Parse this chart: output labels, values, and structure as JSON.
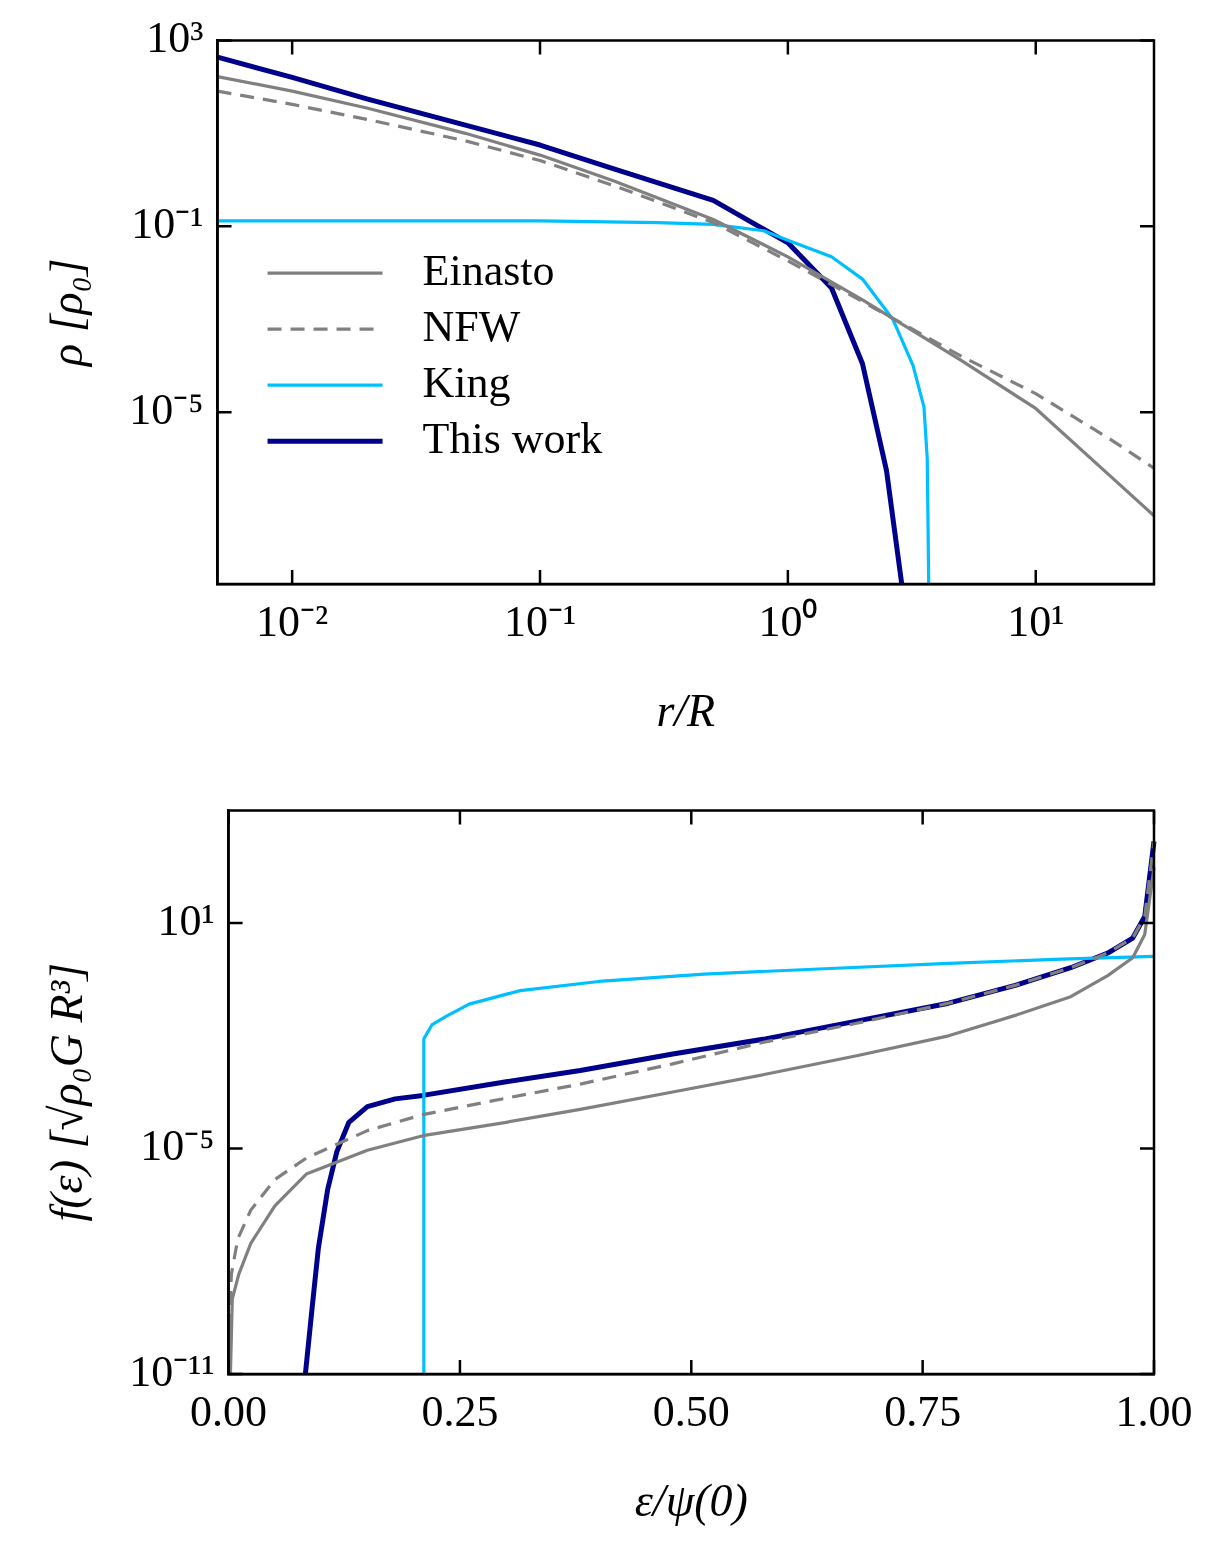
{
  "chart_data": [
    {
      "type": "line",
      "xlabel": "r/R",
      "ylabel": "ρ [ρ₀]",
      "log": "xy",
      "grid": false,
      "legend": "center left",
      "xlim": [
        0.005,
        30
      ],
      "ylim": [
        2e-09,
        1000
      ],
      "xticks": [
        {
          "value": 0.01,
          "label": "10⁻²"
        },
        {
          "value": 0.1,
          "label": "10⁻¹"
        },
        {
          "value": 1,
          "label": "10⁰"
        },
        {
          "value": 10,
          "label": "10¹"
        }
      ],
      "yticks": [
        {
          "value": 1e-05,
          "label": "10⁻⁵"
        },
        {
          "value": 0.1,
          "label": "10⁻¹"
        },
        {
          "value": 1000,
          "label": "10³"
        }
      ],
      "series": [
        {
          "name": "Einasto",
          "color": "#808080",
          "line_style": "solid",
          "x": [
            0.005,
            0.01,
            0.02,
            0.05,
            0.1,
            0.2,
            0.5,
            1,
            2,
            5,
            10,
            20,
            30
          ],
          "values": [
            166,
            81,
            35,
            10,
            3.4,
            0.93,
            0.14,
            0.022,
            0.0026,
            0.00013,
            1.2e-05,
            4.2e-07,
            5.9e-08
          ]
        },
        {
          "name": "NFW",
          "color": "#808080",
          "line_style": "dashed",
          "x": [
            0.005,
            0.01,
            0.02,
            0.05,
            0.1,
            0.2,
            0.5,
            1,
            2,
            5,
            10,
            20,
            30
          ],
          "values": [
            81,
            42,
            20,
            6.9,
            2.6,
            0.74,
            0.12,
            0.018,
            0.0024,
            0.00016,
            2.5e-05,
            2.6e-06,
            6.2e-07
          ]
        },
        {
          "name": "King",
          "color": "#00bfff",
          "line_style": "solid",
          "x": [
            0.005,
            0.1,
            0.3,
            0.5,
            0.8,
            1,
            1.5,
            2,
            2.65,
            3.2,
            3.54,
            3.65,
            3.7
          ],
          "values": [
            0.13,
            0.13,
            0.12,
            0.11,
            0.08,
            0.05,
            0.022,
            0.0073,
            0.001,
            0.0001,
            1.3e-05,
            1e-06,
            2e-09
          ]
        },
        {
          "name": "This work",
          "color": "#00008b",
          "line_style": "solid",
          "x": [
            0.005,
            0.01,
            0.02,
            0.05,
            0.1,
            0.2,
            0.5,
            1,
            1.5,
            2,
            2.5,
            2.88
          ],
          "values": [
            436,
            160,
            55,
            15,
            5.6,
            1.7,
            0.36,
            0.044,
            0.0047,
            0.00011,
            5.5e-07,
            2e-09
          ]
        }
      ]
    },
    {
      "type": "line",
      "xlabel": "ε/ψ(0)",
      "ylabel": "f(ε) [√ρ₀G R³]",
      "log": "y",
      "grid": false,
      "xlim": [
        0,
        1
      ],
      "ylim": [
        1e-11,
        10000
      ],
      "xticks": [
        {
          "value": 0,
          "label": "0.00"
        },
        {
          "value": 0.25,
          "label": "0.25"
        },
        {
          "value": 0.5,
          "label": "0.50"
        },
        {
          "value": 0.75,
          "label": "0.75"
        },
        {
          "value": 1,
          "label": "1.00"
        }
      ],
      "yticks": [
        {
          "value": 1e-11,
          "label": "10⁻¹¹"
        },
        {
          "value": 1e-05,
          "label": "10⁻⁵"
        },
        {
          "value": 10,
          "label": "10¹"
        }
      ],
      "series": [
        {
          "color": "#808080",
          "line_style": "solid",
          "x": [
            0.002,
            0.004,
            0.011,
            0.024,
            0.05,
            0.084,
            0.15,
            0.21,
            0.3,
            0.38,
            0.48,
            0.58,
            0.68,
            0.778,
            0.85,
            0.91,
            0.95,
            0.977,
            0.99,
            1.0
          ],
          "values": [
            1e-11,
            1e-09,
            4.5e-09,
            3e-08,
            3e-07,
            2.1e-06,
            9e-06,
            2.2e-05,
            5e-05,
            0.00011,
            0.00032,
            0.00095,
            0.003,
            0.01,
            0.035,
            0.11,
            0.4,
            1.2,
            5,
            300
          ]
        },
        {
          "color": "#808080",
          "line_style": "dashed",
          "x": [
            0.001,
            0.002,
            0.003,
            0.01,
            0.024,
            0.05,
            0.084,
            0.15,
            0.21,
            0.3,
            0.38,
            0.48,
            0.58,
            0.68,
            0.778,
            0.85,
            0.91,
            0.95,
            0.977,
            0.99,
            1.0
          ],
          "values": [
            1e-11,
            1e-09,
            4.5e-09,
            4e-08,
            2.3e-07,
            1.5e-06,
            5.6e-06,
            3e-05,
            8e-05,
            0.00022,
            0.00052,
            0.0018,
            0.0069,
            0.022,
            0.074,
            0.22,
            0.65,
            1.6,
            4,
            15,
            1500
          ]
        },
        {
          "color": "#00bfff",
          "line_style": "solid",
          "x": [
            0.211,
            0.211,
            0.22,
            0.236,
            0.26,
            0.315,
            0.4,
            0.514,
            0.65,
            0.778,
            0.9,
            1.0
          ],
          "values": [
            1e-11,
            0.0083,
            0.02,
            0.034,
            0.07,
            0.16,
            0.28,
            0.44,
            0.62,
            0.85,
            1.1,
            1.3
          ]
        },
        {
          "color": "#00008b",
          "line_style": "solid",
          "x": [
            0.083,
            0.09,
            0.097,
            0.107,
            0.117,
            0.13,
            0.15,
            0.18,
            0.21,
            0.3,
            0.38,
            0.48,
            0.58,
            0.68,
            0.778,
            0.85,
            0.91,
            0.95,
            0.977,
            0.99,
            1.0
          ],
          "values": [
            1e-11,
            5e-10,
            2.2e-08,
            8e-07,
            8.3e-06,
            5e-05,
            0.00013,
            0.00021,
            0.00026,
            0.0006,
            0.0012,
            0.0033,
            0.0083,
            0.025,
            0.074,
            0.22,
            0.65,
            1.6,
            4,
            15,
            1500
          ]
        }
      ]
    }
  ]
}
